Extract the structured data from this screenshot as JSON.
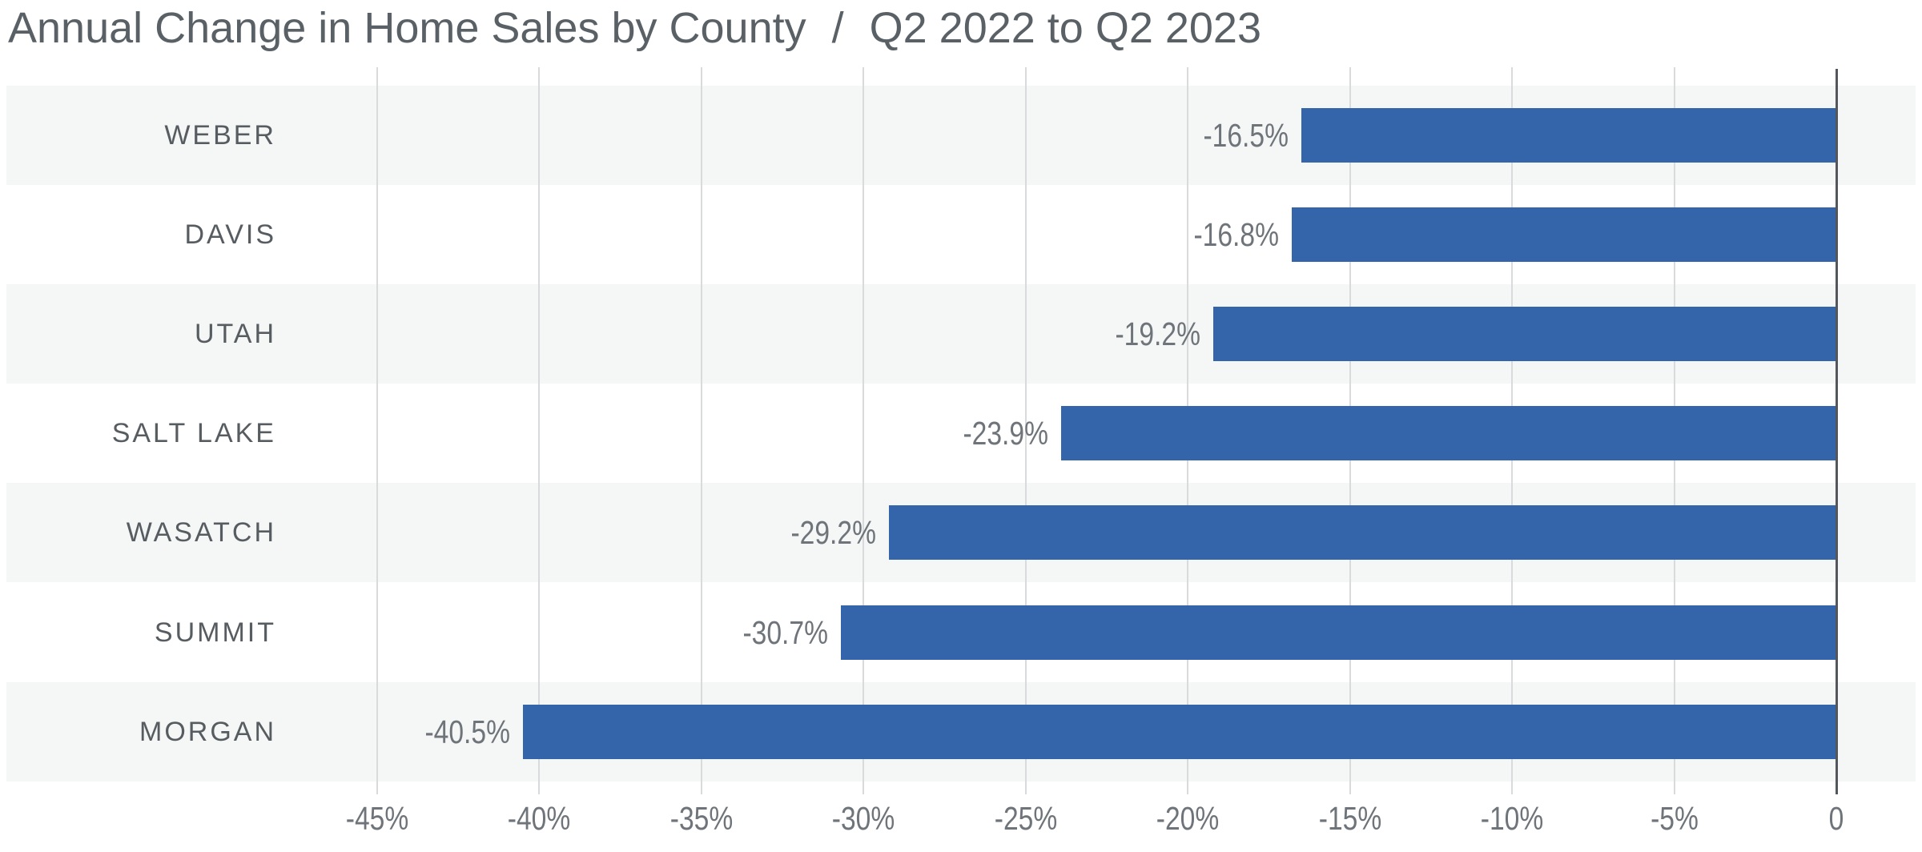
{
  "title": {
    "main": "Annual Change in Home Sales by County",
    "separator": "/",
    "period": "Q2 2022 to Q2 2023"
  },
  "chart_data": {
    "type": "bar",
    "orientation": "horizontal",
    "title": "Annual Change in Home Sales by County / Q2 2022 to Q2 2023",
    "categories": [
      "WEBER",
      "DAVIS",
      "UTAH",
      "SALT LAKE",
      "WASATCH",
      "SUMMIT",
      "MORGAN"
    ],
    "values": [
      -16.5,
      -16.8,
      -19.2,
      -23.9,
      -29.2,
      -30.7,
      -40.5
    ],
    "value_labels": [
      "-16.5%",
      "-16.8%",
      "-19.2%",
      "-23.9%",
      "-29.2%",
      "-30.7%",
      "-40.5%"
    ],
    "x_tick_labels": [
      "-45%",
      "-40%",
      "-35%",
      "-30%",
      "-25%",
      "-20%",
      "-15%",
      "-10%",
      "-5%",
      "0"
    ],
    "x_tick_values": [
      -45,
      -40,
      -35,
      -30,
      -25,
      -20,
      -15,
      -10,
      -5,
      0
    ],
    "x_range": [
      -45,
      0
    ],
    "xlabel": "",
    "ylabel": "",
    "grid": "vertical",
    "legend": false,
    "zebra_striping": true
  },
  "colors": {
    "bar": "#3464a9",
    "stripe": "#f5f6f6",
    "gridline": "#d9dadb",
    "axis": "#53575b",
    "title_text": "#5a6166",
    "category_text": "#575c61",
    "value_text": "#6e7479",
    "tick_text": "#6e7479",
    "background": "#ffffff"
  }
}
